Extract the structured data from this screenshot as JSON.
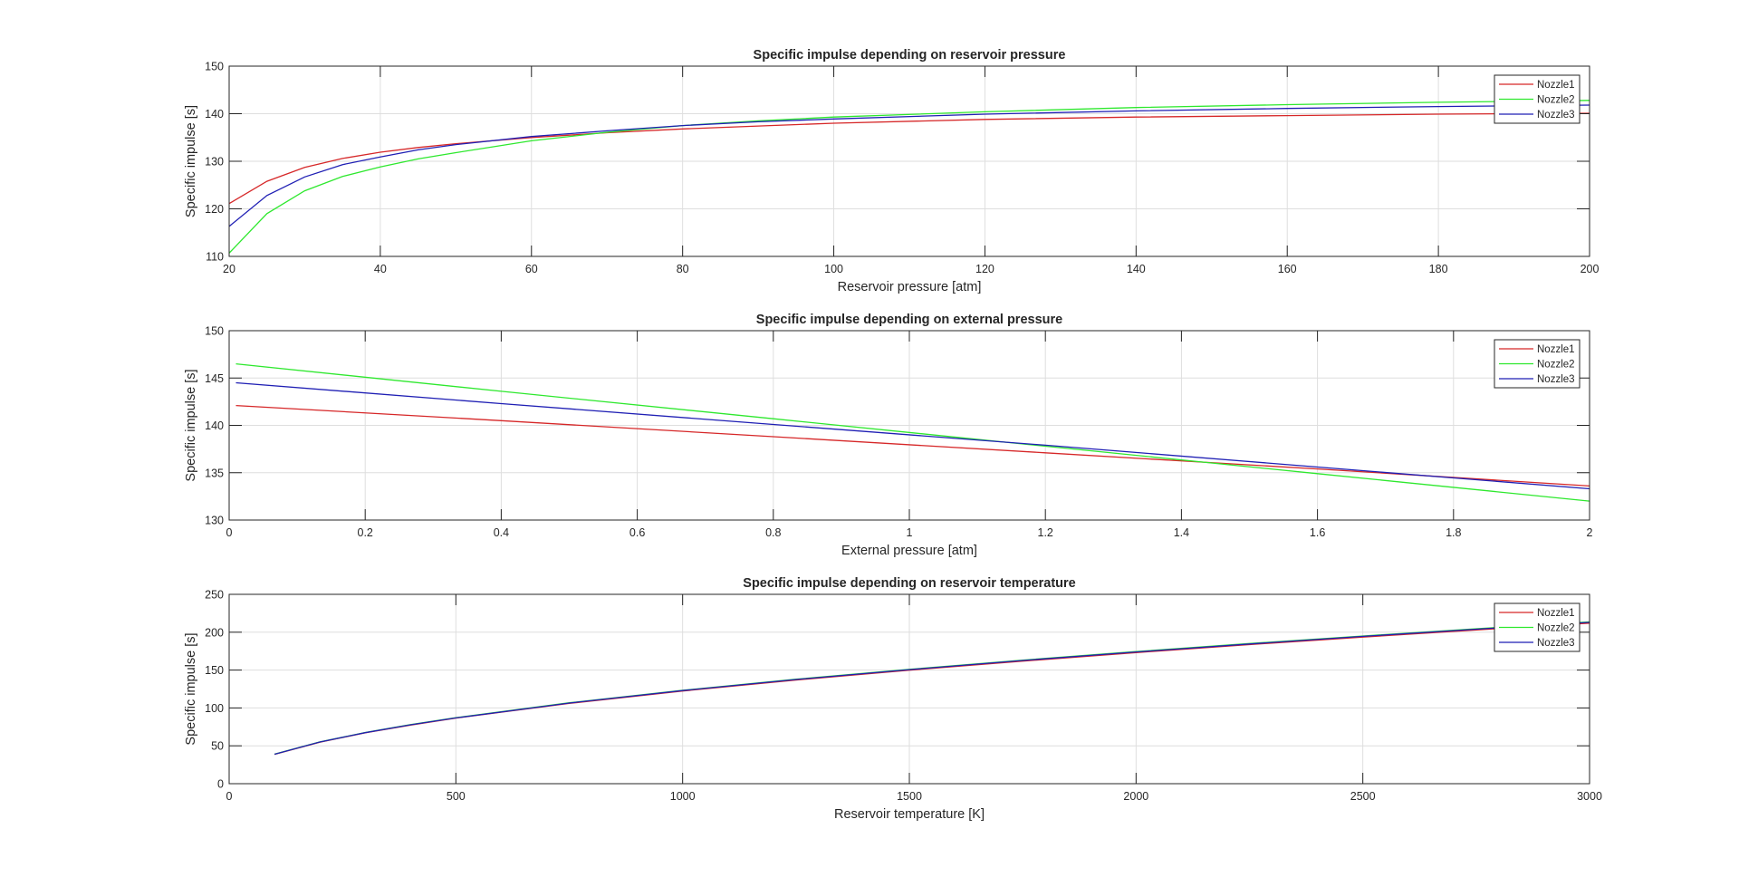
{
  "chart_data": [
    {
      "type": "line",
      "title": "Specific impulse depending on reservoir pressure",
      "xlabel": "Reservoir pressure [atm]",
      "ylabel": "Specific impulse [s]",
      "xlim": [
        20,
        200
      ],
      "ylim": [
        110,
        150
      ],
      "xticks": [
        20,
        40,
        60,
        80,
        100,
        120,
        140,
        160,
        180,
        200
      ],
      "yticks": [
        110,
        120,
        130,
        140,
        150
      ],
      "grid": true,
      "legend_position": "top-right",
      "series": [
        {
          "name": "Nozzle1",
          "color": "#d62728",
          "x": [
            20,
            25,
            30,
            35,
            40,
            45,
            50,
            60,
            70,
            80,
            90,
            100,
            120,
            140,
            160,
            180,
            200
          ],
          "y": [
            121.1,
            125.8,
            128.7,
            130.6,
            131.9,
            132.9,
            133.7,
            135.0,
            136.0,
            136.8,
            137.4,
            138.0,
            138.8,
            139.3,
            139.6,
            139.9,
            140.1
          ]
        },
        {
          "name": "Nozzle2",
          "color": "#2ee82e",
          "x": [
            20,
            25,
            30,
            35,
            40,
            45,
            50,
            60,
            70,
            80,
            90,
            100,
            120,
            140,
            160,
            180,
            200
          ],
          "y": [
            110.7,
            119.0,
            123.8,
            126.8,
            128.8,
            130.5,
            131.8,
            134.3,
            136.1,
            137.5,
            138.5,
            139.3,
            140.4,
            141.3,
            141.9,
            142.4,
            142.8
          ]
        },
        {
          "name": "Nozzle3",
          "color": "#1f1fb4",
          "x": [
            20,
            25,
            30,
            35,
            40,
            45,
            50,
            60,
            70,
            80,
            90,
            100,
            120,
            140,
            160,
            180,
            200
          ],
          "y": [
            116.3,
            122.8,
            126.7,
            129.3,
            130.9,
            132.4,
            133.5,
            135.2,
            136.4,
            137.5,
            138.3,
            138.9,
            139.9,
            140.6,
            141.1,
            141.5,
            141.8
          ]
        }
      ]
    },
    {
      "type": "line",
      "title": "Specific impulse depending on external pressure",
      "xlabel": "External pressure [atm]",
      "ylabel": "Specific impulse [s]",
      "xlim": [
        0,
        2
      ],
      "ylim": [
        130,
        150
      ],
      "xticks": [
        0,
        0.2,
        0.4,
        0.6,
        0.8,
        1,
        1.2,
        1.4,
        1.6,
        1.8,
        2
      ],
      "yticks": [
        130,
        135,
        140,
        145,
        150
      ],
      "grid": true,
      "legend_position": "top-right",
      "series": [
        {
          "name": "Nozzle1",
          "color": "#d62728",
          "x": [
            0.01,
            0.4,
            0.8,
            1.2,
            1.6,
            2
          ],
          "y": [
            142.1,
            140.5,
            138.8,
            137.1,
            135.4,
            133.6
          ]
        },
        {
          "name": "Nozzle2",
          "color": "#2ee82e",
          "x": [
            0.01,
            0.4,
            0.8,
            1.2,
            1.6,
            2
          ],
          "y": [
            146.5,
            143.6,
            140.7,
            137.8,
            134.9,
            132.0
          ]
        },
        {
          "name": "Nozzle3",
          "color": "#1f1fb4",
          "x": [
            0.01,
            0.4,
            0.8,
            1.2,
            1.6,
            2
          ],
          "y": [
            144.5,
            142.3,
            140.1,
            137.9,
            135.6,
            133.3
          ]
        }
      ]
    },
    {
      "type": "line",
      "title": "Specific impulse depending on reservoir temperature",
      "xlabel": "Reservoir temperature [K]",
      "ylabel": "Specific impulse [s]",
      "xlim": [
        0,
        3000
      ],
      "ylim": [
        0,
        250
      ],
      "xticks": [
        0,
        500,
        1000,
        1500,
        2000,
        2500,
        3000
      ],
      "yticks": [
        0,
        50,
        100,
        150,
        200,
        250
      ],
      "grid": true,
      "legend_position": "top-right",
      "series": [
        {
          "name": "Nozzle1",
          "color": "#d62728",
          "x": [
            100,
            200,
            300,
            400,
            500,
            750,
            1000,
            1250,
            1500,
            1750,
            2000,
            2250,
            2500,
            2750,
            3000
          ],
          "y": [
            38.7,
            54.8,
            67.1,
            77.4,
            86.6,
            106.0,
            122.4,
            136.8,
            149.9,
            161.9,
            173.1,
            183.6,
            193.5,
            203.0,
            212.0
          ]
        },
        {
          "name": "Nozzle2",
          "color": "#2ee82e",
          "x": [
            100,
            200,
            300,
            400,
            500,
            750,
            1000,
            1250,
            1500,
            1750,
            2000,
            2250,
            2500,
            2750,
            3000
          ],
          "y": [
            39.0,
            55.2,
            67.6,
            78.0,
            87.2,
            106.8,
            123.3,
            137.9,
            151.0,
            163.1,
            174.4,
            185.0,
            195.0,
            204.5,
            213.6
          ]
        },
        {
          "name": "Nozzle3",
          "color": "#1f1fb4",
          "x": [
            100,
            200,
            300,
            400,
            500,
            750,
            1000,
            1250,
            1500,
            1750,
            2000,
            2250,
            2500,
            2750,
            3000
          ],
          "y": [
            38.9,
            55.0,
            67.4,
            77.8,
            86.9,
            106.5,
            123.0,
            137.5,
            150.6,
            162.7,
            173.9,
            184.5,
            194.5,
            204.0,
            213.0
          ]
        }
      ]
    }
  ]
}
